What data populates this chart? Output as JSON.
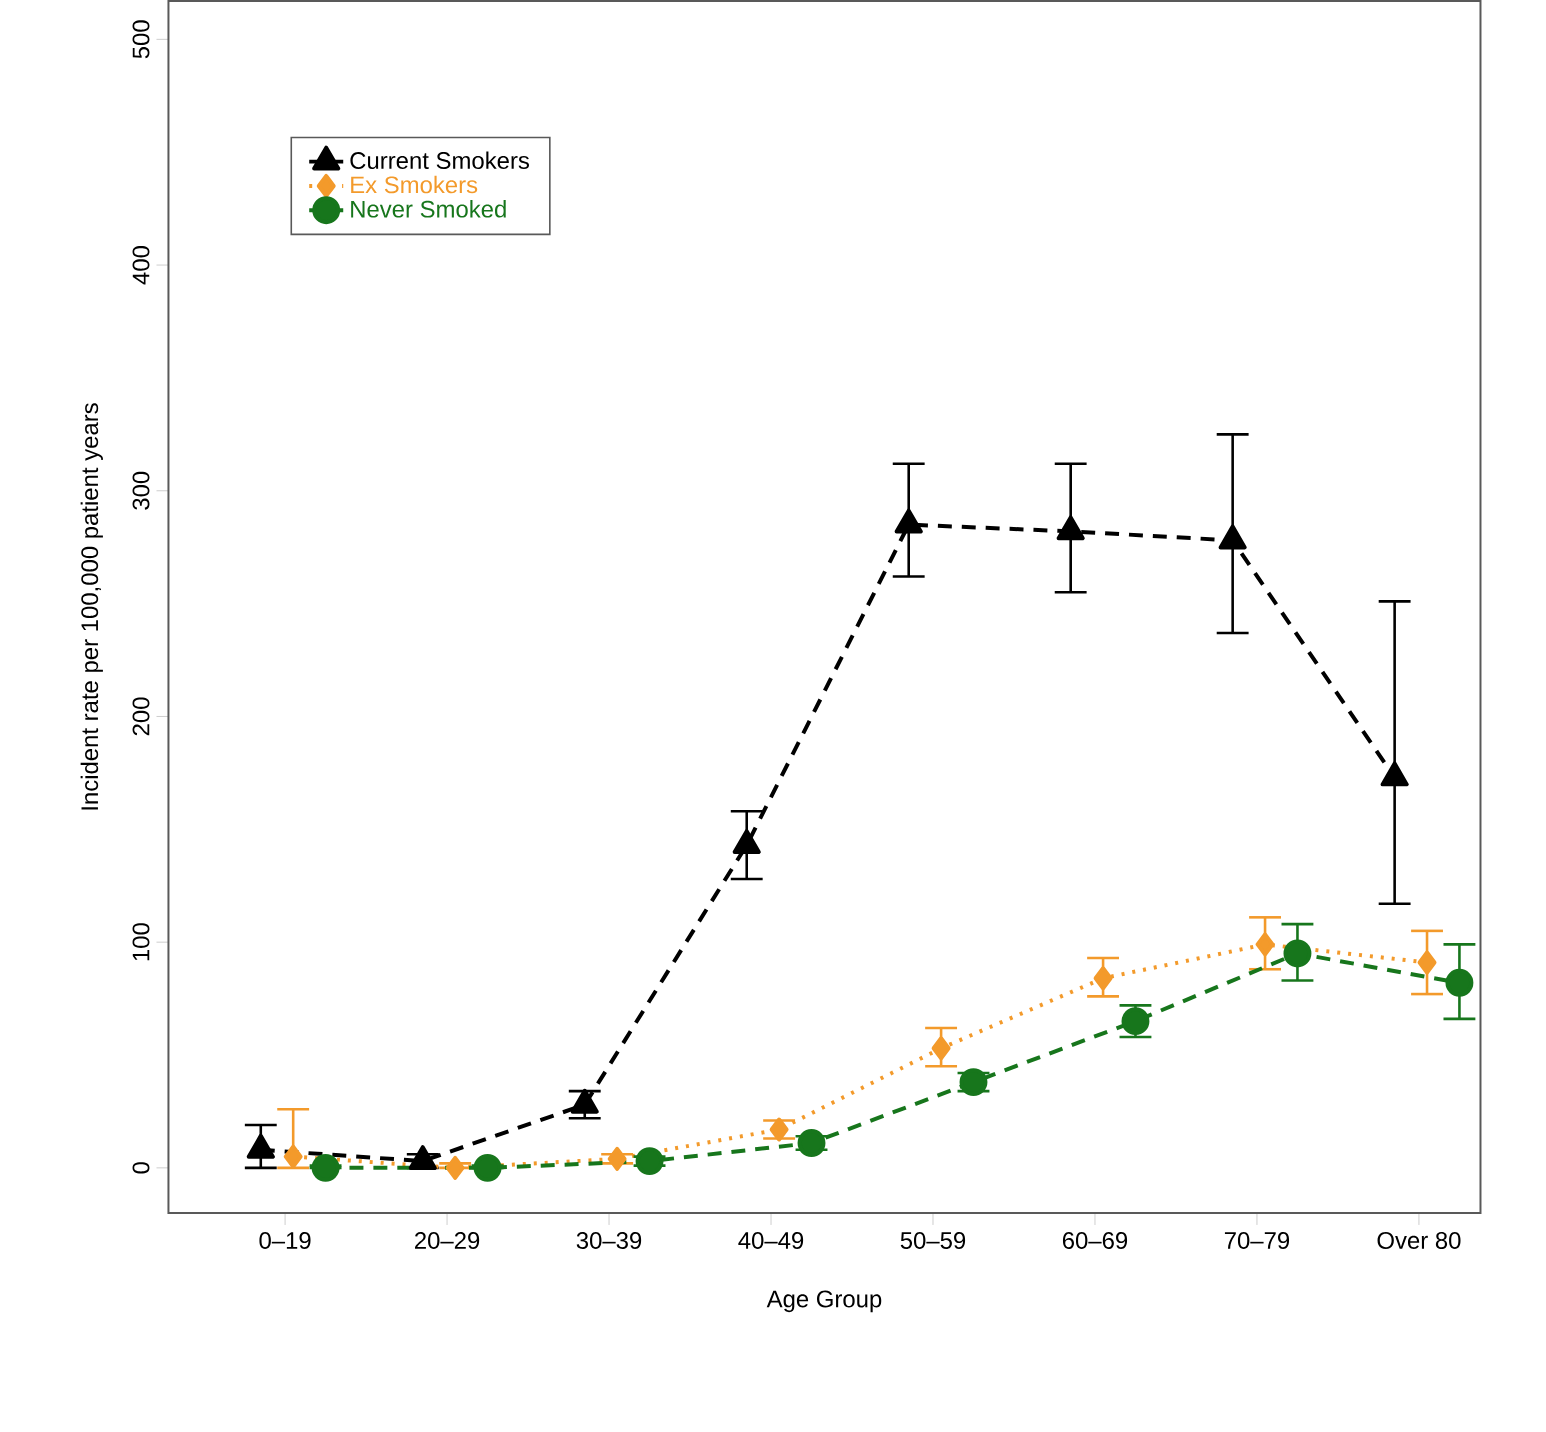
{
  "chart_data": {
    "type": "line",
    "xlabel": "Age Group",
    "ylabel": "Incident rate per 100,000 patient years",
    "categories": [
      "0–19",
      "20–29",
      "30–39",
      "40–49",
      "50–59",
      "60–69",
      "70–79",
      "Over 80"
    ],
    "ylim": [
      -20,
      517
    ],
    "yticks": [
      0,
      100,
      200,
      300,
      400,
      500
    ],
    "grid": false,
    "legend": "top left",
    "series": [
      {
        "name": "Current Smokers",
        "color": "#000000",
        "marker": "triangle",
        "line_style": "dashed",
        "values": [
          8,
          3,
          28,
          143,
          285,
          282,
          278,
          173
        ],
        "errors": [
          [
            0,
            19
          ],
          [
            0,
            6
          ],
          [
            22,
            34
          ],
          [
            128,
            158
          ],
          [
            262,
            312
          ],
          [
            255,
            312
          ],
          [
            237,
            325
          ],
          [
            117,
            251
          ]
        ]
      },
      {
        "name": "Ex Smokers",
        "color": "#f39a2b",
        "marker": "diamond",
        "line_style": "dotted",
        "values": [
          5,
          0,
          4,
          17,
          53,
          84,
          99,
          91
        ],
        "errors": [
          [
            0,
            26
          ],
          [
            0,
            2
          ],
          [
            2,
            6
          ],
          [
            13,
            21
          ],
          [
            45,
            62
          ],
          [
            76,
            93
          ],
          [
            88,
            111
          ],
          [
            77,
            105
          ]
        ]
      },
      {
        "name": "Never Smoked",
        "color": "#17761c",
        "marker": "circle",
        "line_style": "dashed",
        "values": [
          0,
          0,
          3,
          11,
          38,
          65,
          95,
          82
        ],
        "errors": [
          [
            0,
            1
          ],
          [
            0,
            1
          ],
          [
            1,
            5
          ],
          [
            8,
            14
          ],
          [
            34,
            42
          ],
          [
            58,
            72
          ],
          [
            83,
            108
          ],
          [
            66,
            99
          ]
        ]
      }
    ]
  }
}
